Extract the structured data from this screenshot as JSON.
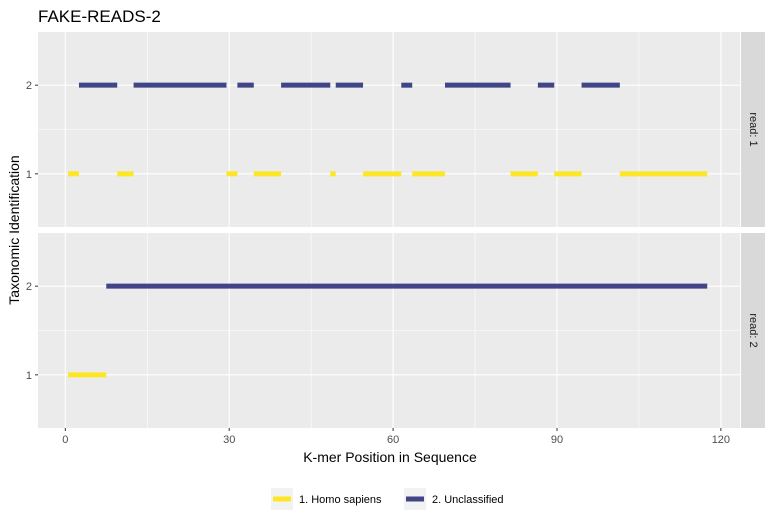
{
  "chart_data": {
    "type": "line",
    "title": "FAKE-READS-2",
    "xlabel": "K-mer Position in Sequence",
    "ylabel": "Taxonomic Identification",
    "xlim": [
      -5,
      123.5
    ],
    "ylim": [
      0.4,
      2.6
    ],
    "x_ticks": [
      0,
      30,
      60,
      90,
      120
    ],
    "y_ticks": [
      1,
      2
    ],
    "grid": true,
    "legend_position": "bottom",
    "series": [
      {
        "name": "1. Homo sapiens",
        "color": "#FDE725"
      },
      {
        "name": "2. Unclassified",
        "color": "#414487"
      }
    ],
    "panels": [
      {
        "strip": "read: 1",
        "segments": [
          {
            "series": 0,
            "y": 1,
            "x0": 0.5,
            "x1": 2.5
          },
          {
            "series": 1,
            "y": 2,
            "x0": 2.5,
            "x1": 9.5
          },
          {
            "series": 0,
            "y": 1,
            "x0": 9.5,
            "x1": 12.5
          },
          {
            "series": 1,
            "y": 2,
            "x0": 12.5,
            "x1": 29.5
          },
          {
            "series": 0,
            "y": 1,
            "x0": 29.5,
            "x1": 31.5
          },
          {
            "series": 1,
            "y": 2,
            "x0": 31.5,
            "x1": 34.5
          },
          {
            "series": 0,
            "y": 1,
            "x0": 34.5,
            "x1": 39.5
          },
          {
            "series": 1,
            "y": 2,
            "x0": 39.5,
            "x1": 48.5
          },
          {
            "series": 0,
            "y": 1,
            "x0": 48.5,
            "x1": 49.5
          },
          {
            "series": 1,
            "y": 2,
            "x0": 49.5,
            "x1": 54.5
          },
          {
            "series": 0,
            "y": 1,
            "x0": 54.5,
            "x1": 61.5
          },
          {
            "series": 1,
            "y": 2,
            "x0": 61.5,
            "x1": 63.5
          },
          {
            "series": 0,
            "y": 1,
            "x0": 63.5,
            "x1": 69.5
          },
          {
            "series": 1,
            "y": 2,
            "x0": 69.5,
            "x1": 81.5
          },
          {
            "series": 0,
            "y": 1,
            "x0": 81.5,
            "x1": 86.5
          },
          {
            "series": 1,
            "y": 2,
            "x0": 86.5,
            "x1": 89.5
          },
          {
            "series": 0,
            "y": 1,
            "x0": 89.5,
            "x1": 94.5
          },
          {
            "series": 1,
            "y": 2,
            "x0": 94.5,
            "x1": 101.5
          },
          {
            "series": 0,
            "y": 1,
            "x0": 101.5,
            "x1": 117.5
          }
        ]
      },
      {
        "strip": "read: 2",
        "segments": [
          {
            "series": 0,
            "y": 1,
            "x0": 0.5,
            "x1": 7.5
          },
          {
            "series": 1,
            "y": 2,
            "x0": 7.5,
            "x1": 117.5
          }
        ]
      }
    ]
  }
}
